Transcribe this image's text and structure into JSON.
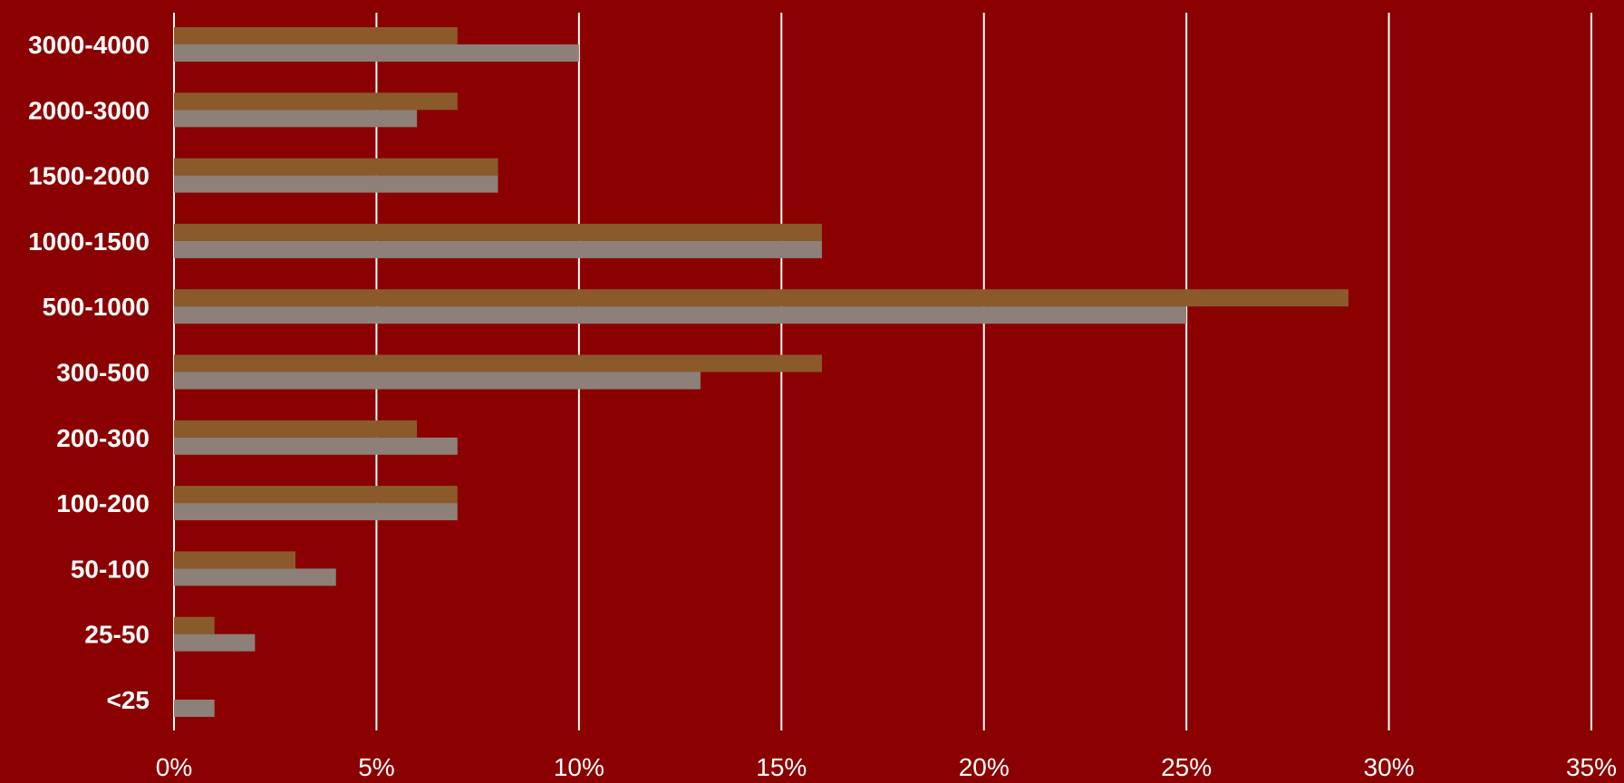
{
  "chart_data": {
    "type": "bar",
    "orientation": "horizontal",
    "title": "",
    "xlabel": "",
    "ylabel": "",
    "categories": [
      "3000-4000",
      "2000-3000",
      "1500-2000",
      "1000-1500",
      "500-1000",
      "300-500",
      "200-300",
      "100-200",
      "50-100",
      "25-50",
      "<25"
    ],
    "series": [
      {
        "values": [
          7,
          7,
          8,
          16,
          29,
          16,
          6,
          7,
          3,
          1,
          0
        ],
        "color": "#8B5A2B"
      },
      {
        "values": [
          10,
          6,
          8,
          16,
          25,
          13,
          7,
          7,
          4,
          2,
          1
        ],
        "color": "#8C8078"
      }
    ],
    "xlim": [
      0,
      35
    ],
    "x_ticks": [
      0,
      5,
      10,
      15,
      20,
      25,
      30,
      35
    ],
    "x_tick_labels": [
      "0%",
      "5%",
      "10%",
      "15%",
      "20%",
      "25%",
      "30%",
      "35%"
    ],
    "grid": "vertical",
    "gridline_color": "#ffffff",
    "background_color": "#8B0000",
    "legend": "none"
  }
}
